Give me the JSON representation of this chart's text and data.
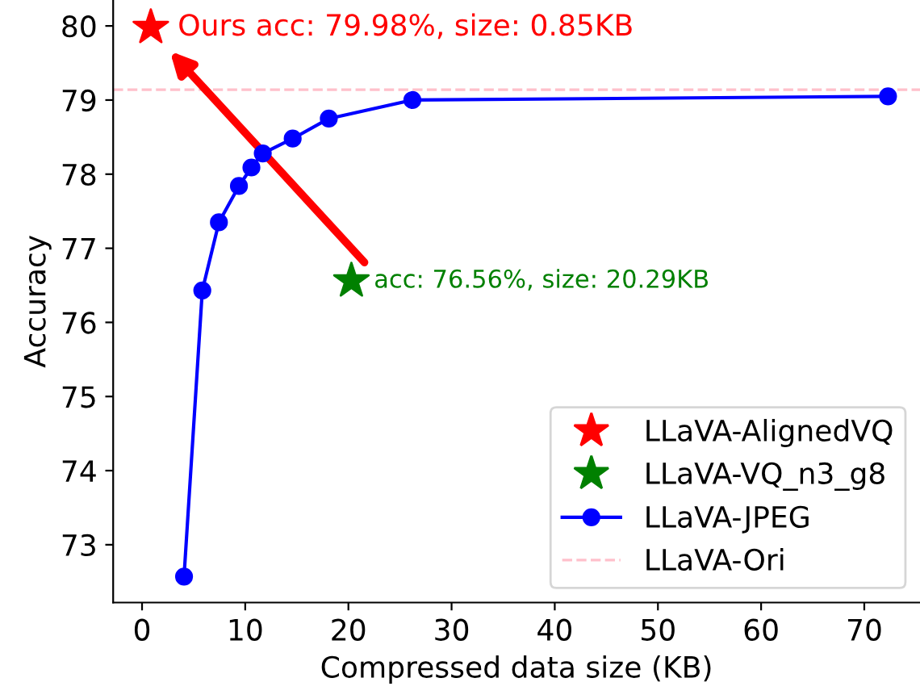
{
  "chart_data": {
    "type": "line",
    "xlabel": "Compressed data size (KB)",
    "ylabel": "Accuracy",
    "xlim": [
      -2.8,
      75.4
    ],
    "ylim": [
      72.22,
      80.35
    ],
    "xticks": [
      0,
      10,
      20,
      30,
      40,
      50,
      60,
      70
    ],
    "yticks": [
      73,
      74,
      75,
      76,
      77,
      78,
      79,
      80
    ],
    "series": [
      {
        "name": "LLaVA-AlignedVQ",
        "type": "scatter",
        "marker": "star",
        "color": "#ff0000",
        "x": [
          0.85
        ],
        "values": [
          79.98
        ]
      },
      {
        "name": "LLaVA-VQ_n3_g8",
        "type": "scatter",
        "marker": "star",
        "color": "#008000",
        "x": [
          20.29
        ],
        "values": [
          76.56
        ]
      },
      {
        "name": "LLaVA-JPEG",
        "marker": "circle",
        "line_style": "solid",
        "color": "#0000ff",
        "x": [
          4.07,
          5.84,
          7.45,
          9.39,
          10.6,
          11.7,
          14.6,
          18.1,
          26.2,
          72.3
        ],
        "values": [
          72.57,
          76.43,
          77.35,
          77.84,
          78.09,
          78.28,
          78.48,
          78.75,
          79.0,
          79.05
        ]
      }
    ],
    "ref_lines": [
      {
        "axis": "y",
        "value": 79.14,
        "label": "LLaVA-Ori",
        "color": "#ffc0cb",
        "line_style": "dashed"
      }
    ],
    "annotations": [
      {
        "text": "Ours acc: 79.98%, size: 0.85KB",
        "x": 0.85,
        "y": 79.98
      },
      {
        "text": "acc: 76.56%, size: 20.29KB",
        "x": 20.29,
        "y": 76.56
      }
    ],
    "legend": "bottom right",
    "grid": false
  }
}
